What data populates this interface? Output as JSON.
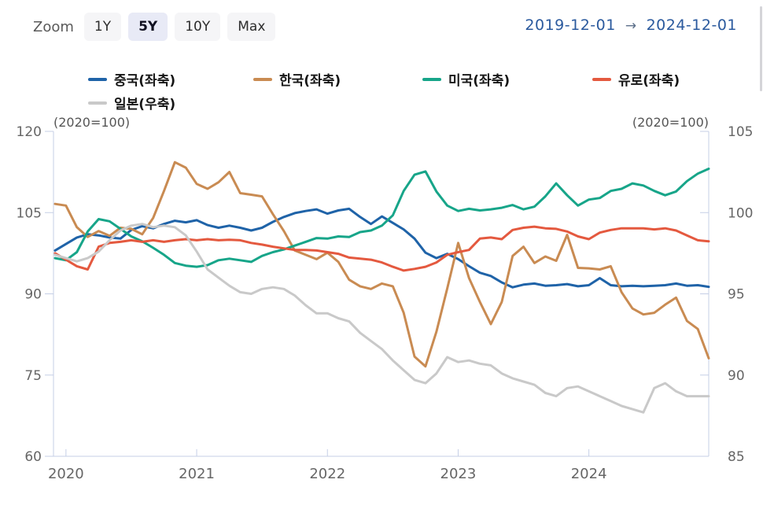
{
  "controls": {
    "zoom_label": "Zoom",
    "buttons": [
      {
        "label": "1Y",
        "active": false
      },
      {
        "label": "5Y",
        "active": true
      },
      {
        "label": "10Y",
        "active": false
      },
      {
        "label": "Max",
        "active": false
      }
    ]
  },
  "date_range": {
    "start": "2019-12-01",
    "arrow": "→",
    "end": "2024-12-01"
  },
  "chart_data": {
    "type": "line",
    "x_start": "2019-12",
    "x_unit": "month",
    "x_ticks": {
      "labels": [
        "2020",
        "2021",
        "2022",
        "2023",
        "2024"
      ],
      "month_index": [
        1,
        13,
        25,
        37,
        49
      ]
    },
    "left_axis": {
      "caption": "(2020=100)",
      "range": [
        60,
        120
      ],
      "ticks": [
        120,
        105,
        90,
        75,
        60
      ]
    },
    "right_axis": {
      "caption": "(2020=100)",
      "range": [
        85,
        105
      ],
      "ticks": [
        105,
        100,
        95,
        90,
        85
      ]
    },
    "grid": false,
    "legend_position": "top",
    "axis_color": "#c5cfe6",
    "tick_label_color": "#666666",
    "caption_color": "#555555",
    "series": [
      {
        "key": "china",
        "name": "중국(좌축)",
        "axis": "left",
        "color": "#1f63a8",
        "values": [
          98.0,
          99.2,
          100.4,
          101.0,
          100.8,
          100.4,
          100.2,
          101.8,
          102.5,
          102.1,
          102.9,
          103.5,
          103.2,
          103.6,
          102.7,
          102.2,
          102.6,
          102.2,
          101.7,
          102.2,
          103.3,
          104.2,
          104.9,
          105.3,
          105.6,
          104.8,
          105.4,
          105.7,
          104.2,
          102.9,
          104.3,
          103.1,
          101.9,
          100.2,
          97.6,
          96.6,
          97.4,
          96.4,
          95.1,
          93.9,
          93.3,
          92.1,
          91.2,
          91.7,
          91.9,
          91.5,
          91.6,
          91.8,
          91.4,
          91.6,
          92.9,
          91.6,
          91.4,
          91.5,
          91.4,
          91.5,
          91.6,
          91.9,
          91.5,
          91.6,
          91.3
        ]
      },
      {
        "key": "korea",
        "name": "한국(좌축)",
        "axis": "left",
        "color": "#c98b52",
        "values": [
          106.6,
          106.3,
          102.3,
          100.5,
          101.6,
          100.7,
          102.2,
          102.0,
          101.0,
          104.0,
          109.0,
          114.3,
          113.3,
          110.3,
          109.4,
          110.6,
          112.5,
          108.6,
          108.3,
          108.0,
          104.7,
          101.6,
          98.0,
          97.2,
          96.4,
          97.6,
          95.9,
          92.6,
          91.4,
          90.9,
          91.9,
          91.4,
          86.5,
          78.4,
          76.6,
          83.0,
          91.0,
          99.4,
          92.9,
          88.5,
          84.4,
          88.5,
          97.0,
          98.7,
          95.7,
          96.9,
          96.1,
          100.9,
          94.8,
          94.7,
          94.5,
          95.1,
          90.3,
          87.3,
          86.2,
          86.5,
          88.0,
          89.3,
          85.0,
          83.5,
          78.1
        ]
      },
      {
        "key": "usa",
        "name": "미국(좌축)",
        "axis": "left",
        "color": "#17a589",
        "values": [
          96.6,
          96.2,
          97.7,
          101.5,
          103.8,
          103.4,
          102.0,
          100.6,
          99.7,
          98.5,
          97.2,
          95.7,
          95.2,
          95.0,
          95.3,
          96.2,
          96.5,
          96.2,
          95.9,
          97.0,
          97.7,
          98.2,
          98.9,
          99.6,
          100.3,
          100.2,
          100.6,
          100.5,
          101.4,
          101.7,
          102.6,
          104.5,
          109.0,
          112.0,
          112.6,
          108.9,
          106.3,
          105.3,
          105.7,
          105.4,
          105.6,
          105.9,
          106.4,
          105.6,
          106.1,
          108.0,
          110.4,
          108.2,
          106.3,
          107.4,
          107.7,
          109.0,
          109.4,
          110.4,
          110.0,
          109.0,
          108.2,
          108.9,
          110.8,
          112.2,
          113.1
        ]
      },
      {
        "key": "euro",
        "name": "유로(좌축)",
        "axis": "left",
        "color": "#e4593f",
        "values": [
          97.5,
          96.3,
          95.1,
          94.5,
          98.7,
          99.4,
          99.6,
          99.9,
          99.6,
          99.9,
          99.6,
          99.9,
          100.1,
          99.9,
          100.1,
          99.9,
          100.0,
          99.9,
          99.4,
          99.1,
          98.7,
          98.4,
          98.1,
          98.1,
          98.0,
          97.7,
          97.4,
          96.7,
          96.5,
          96.3,
          95.8,
          95.0,
          94.3,
          94.6,
          95.0,
          95.8,
          97.2,
          97.7,
          98.1,
          100.2,
          100.4,
          100.1,
          101.8,
          102.2,
          102.4,
          102.1,
          102.0,
          101.5,
          100.6,
          100.1,
          101.3,
          101.8,
          102.1,
          102.1,
          102.1,
          101.9,
          102.1,
          101.7,
          100.8,
          99.9,
          99.7
        ]
      },
      {
        "key": "japan",
        "name": "일본(우축)",
        "axis": "right",
        "color": "#c9c9c9",
        "values": [
          97.4,
          97.2,
          97.0,
          97.2,
          97.6,
          98.3,
          98.9,
          99.2,
          99.3,
          99.1,
          99.2,
          99.1,
          98.6,
          97.6,
          96.5,
          96.0,
          95.5,
          95.1,
          95.0,
          95.3,
          95.4,
          95.3,
          94.9,
          94.3,
          93.8,
          93.8,
          93.5,
          93.3,
          92.6,
          92.1,
          91.6,
          90.9,
          90.3,
          89.7,
          89.5,
          90.1,
          91.1,
          90.8,
          90.9,
          90.7,
          90.6,
          90.1,
          89.8,
          89.6,
          89.4,
          88.9,
          88.7,
          89.2,
          89.3,
          89.0,
          88.7,
          88.4,
          88.1,
          87.9,
          87.7,
          89.2,
          89.5,
          89.0,
          88.7,
          88.7,
          88.7
        ]
      }
    ]
  }
}
